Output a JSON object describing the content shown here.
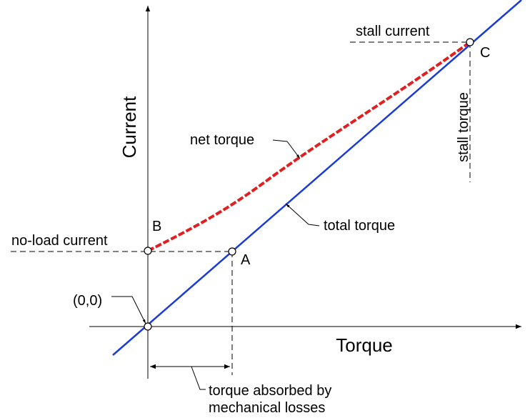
{
  "axes": {
    "y_label": "Current",
    "x_label": "Torque"
  },
  "points": {
    "origin": "(0,0)",
    "a": "A",
    "b": "B",
    "c": "C"
  },
  "annotations": {
    "stall_current": "stall current",
    "stall_torque": "stall torque",
    "net_torque": "net torque",
    "total_torque": "total torque",
    "no_load_current": "no-load current",
    "losses_line1": "torque absorbed by",
    "losses_line2": "mechanical losses"
  }
}
